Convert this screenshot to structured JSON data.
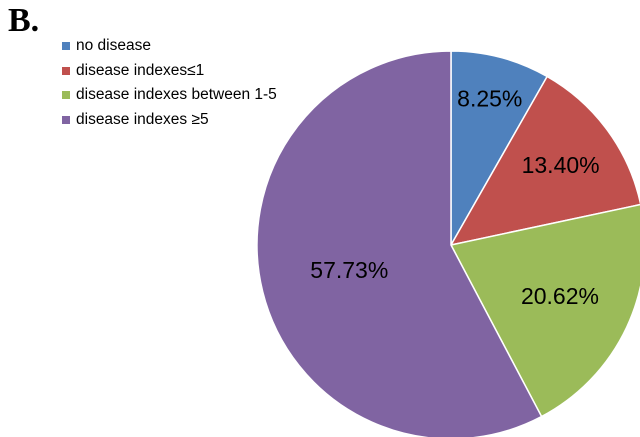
{
  "panel_label": "B.",
  "chart_data": {
    "type": "pie",
    "title": "",
    "categories": [
      "no disease",
      "disease indexes≤1",
      "disease indexes between 1-5",
      "disease indexes ≥5"
    ],
    "values": [
      8.25,
      13.4,
      20.62,
      57.73
    ],
    "labels": [
      "8.25%",
      "13.40%",
      "20.62%",
      "57.73%"
    ],
    "colors": [
      "#4f81bd",
      "#c0504d",
      "#9bbb59",
      "#8064a2"
    ],
    "legend_position": "top-left",
    "start": "12 o'clock, clockwise"
  }
}
